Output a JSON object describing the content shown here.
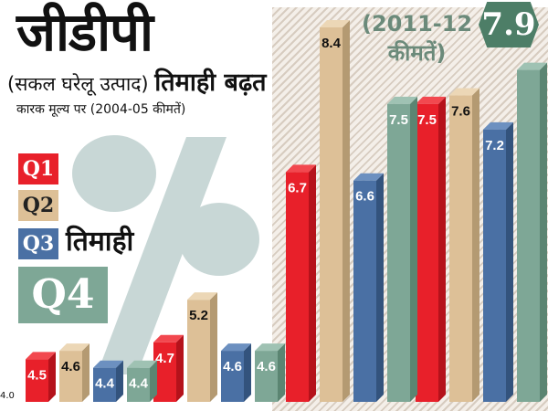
{
  "header": {
    "title": "जीडीपी",
    "subtitle_prefix": "(सकल घरेलू उत्पाद)",
    "subtitle_main": "तिमाही बढ़त",
    "note": "कारक मूल्य पर  (2004-05 कीमतें)",
    "price_note_line1": "(2011-12",
    "price_note_line2": "कीमतें)"
  },
  "legend": {
    "q1": "Q1",
    "q2": "Q2",
    "q3": "Q3",
    "q4": "Q4",
    "quarter_label": "तिमाही"
  },
  "badge": "7.9",
  "chart_data": {
    "type": "bar",
    "title": "जीडीपी",
    "ylabel": "",
    "y_axis_min_label": "4.0",
    "ylim": [
      4.0,
      8.4
    ],
    "categories": [
      "",
      "",
      "",
      ""
    ],
    "series": [
      {
        "name": "Q1",
        "color": "#e8202a",
        "values": [
          4.5,
          4.7,
          6.7,
          7.5
        ]
      },
      {
        "name": "Q2",
        "color": "#ddc097",
        "values": [
          4.6,
          5.2,
          8.4,
          7.6
        ]
      },
      {
        "name": "Q3",
        "color": "#4a70a4",
        "values": [
          4.4,
          4.6,
          6.6,
          7.2
        ]
      },
      {
        "name": "Q4",
        "color": "#7ea796",
        "values": [
          4.4,
          4.6,
          7.5,
          7.9
        ]
      }
    ],
    "data_labels": [
      [
        "4.5",
        "4.6",
        "4.4",
        "4.4"
      ],
      [
        "4.7",
        "5.2",
        "4.6",
        "4.6"
      ],
      [
        "6.7",
        "8.4",
        "6.6",
        "7.5"
      ],
      [
        "7.5",
        "7.6",
        "7.2",
        ""
      ]
    ]
  }
}
